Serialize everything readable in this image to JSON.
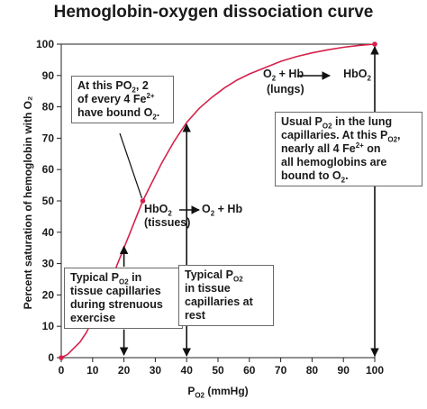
{
  "chart_data": {
    "type": "line",
    "title": "Hemoglobin-oxygen dissociation curve",
    "ylabel": "Percent saturation of hemoglobin with O₂",
    "xlabel_main": "P",
    "xlabel_sub": "O2",
    "xlabel_rest": " (mmHg)",
    "xlim": [
      0,
      100
    ],
    "ylim": [
      0,
      100
    ],
    "x_ticks": [
      0,
      10,
      20,
      30,
      40,
      50,
      60,
      70,
      80,
      90,
      100
    ],
    "y_ticks": [
      0,
      10,
      20,
      30,
      40,
      50,
      60,
      70,
      80,
      90,
      100
    ],
    "curve_color": "#d6214a",
    "series": [
      {
        "x": [
          0,
          2,
          4,
          6,
          8,
          10,
          12,
          14,
          16,
          18,
          20,
          22,
          24,
          26,
          28,
          30,
          32,
          34,
          36,
          38,
          40,
          44,
          48,
          52,
          56,
          60,
          65,
          70,
          75,
          80,
          85,
          90,
          95,
          100
        ],
        "y": [
          0,
          1,
          3,
          5,
          8,
          12,
          16,
          20.5,
          25,
          30,
          35,
          40,
          45,
          50,
          54,
          58,
          62,
          65.5,
          69,
          72,
          75,
          79.5,
          83,
          86,
          88.5,
          90.5,
          92.5,
          94.5,
          96,
          97.2,
          98.2,
          99,
          99.6,
          100
        ]
      }
    ],
    "markers": [
      {
        "x": 0,
        "y": 0
      },
      {
        "x": 26,
        "y": 50
      },
      {
        "x": 100,
        "y": 100
      }
    ]
  },
  "annotations": {
    "half_saturation": {
      "line1": "At this PO",
      "sub1": "2",
      "line1_rest": ", 2",
      "line2": "of every 4 Fe",
      "sup2": "2+",
      "line3": "have bound O",
      "sub3": "2",
      "line3_rest": "."
    },
    "lungs_reaction": {
      "left": "O",
      "left_sub": "2",
      "left_rest": " + Hb",
      "right": "HbO",
      "right_sub": "2",
      "below": "(lungs)"
    },
    "tissues_reaction": {
      "left": "HbO",
      "left_sub": "2",
      "below": "(tissues)",
      "right": "O",
      "right_sub": "2",
      "right_rest": " + Hb"
    },
    "lung_capillaries": {
      "l1a": "Usual P",
      "l1sub": "O2",
      "l1b": " in the lung",
      "l2": "capillaries. At this P",
      "l2sub": "O2",
      "l2b": ",",
      "l3a": "nearly all 4 Fe",
      "l3sup": "2+",
      "l3b": " on",
      "l4": "all hemoglobins are",
      "l5a": "bound to O",
      "l5sub": "2",
      "l5b": "."
    },
    "exercise": {
      "l1a": "Typical P",
      "l1sub": "O2",
      "l1b": " in",
      "l2": "tissue capillaries",
      "l3": "during strenuous",
      "l4": "exercise"
    },
    "rest": {
      "l1a": "Typical P",
      "l1sub": "O2",
      "l2": "in tissue",
      "l3": "capillaries at",
      "l4": "rest"
    }
  }
}
